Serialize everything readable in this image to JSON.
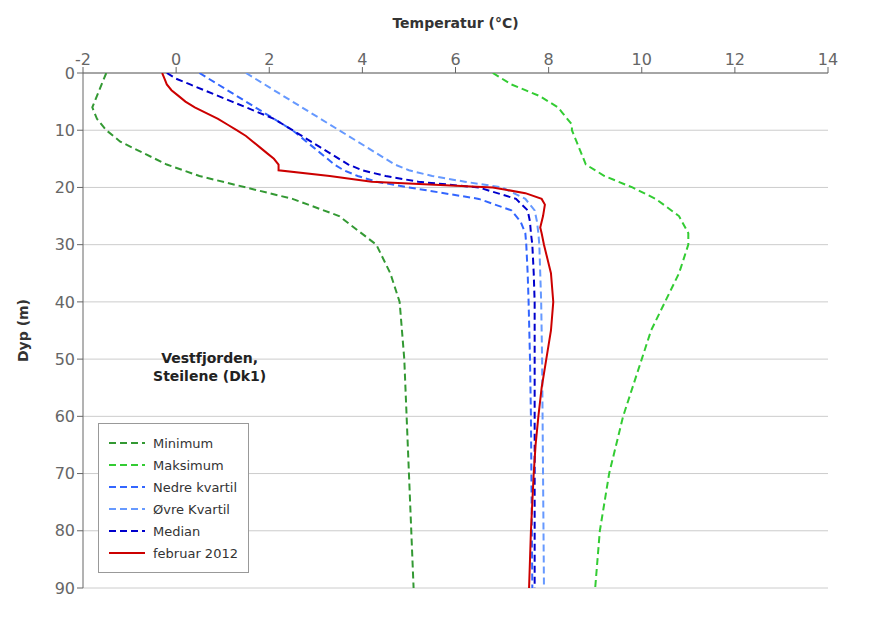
{
  "chart_data": {
    "type": "line",
    "xlabel": "Temperatur (°C)",
    "ylabel": "Dyp (m)",
    "xlim": [
      -2,
      14
    ],
    "ylim": [
      90,
      0
    ],
    "xticks": [
      -2,
      0,
      2,
      4,
      6,
      8,
      10,
      12,
      14
    ],
    "yticks": [
      0,
      10,
      20,
      30,
      40,
      50,
      60,
      70,
      80,
      90
    ],
    "grid": "y",
    "legend": "lower left",
    "annotations": [
      {
        "text": "Vestfjorden,\nSteilene (Dk1)"
      }
    ],
    "series": [
      {
        "name": "Minimum",
        "color": "#339933",
        "line_style": "dashed",
        "x": [
          -1.5,
          -1.6,
          -1.7,
          -1.8,
          -1.7,
          -1.5,
          -1.2,
          -0.7,
          -0.2,
          0.5,
          1.5,
          2.5,
          3.5,
          4.3,
          4.6,
          4.8,
          4.85,
          4.9,
          4.95,
          5.0,
          5.05,
          5.1
        ],
        "values": [
          0,
          2,
          4,
          6,
          8,
          10,
          12,
          14,
          16,
          18,
          20,
          22,
          25,
          30,
          35,
          40,
          45,
          50,
          60,
          70,
          80,
          90
        ]
      },
      {
        "name": "Maksimum",
        "color": "#33cc33",
        "line_style": "dashed",
        "x": [
          6.8,
          7.0,
          7.2,
          7.5,
          7.8,
          8.0,
          8.2,
          8.3,
          8.4,
          8.5,
          8.5,
          8.6,
          8.7,
          8.8,
          9.2,
          9.8,
          10.3,
          10.8,
          11.0,
          11.0,
          10.8,
          10.5,
          10.2,
          10.0,
          9.6,
          9.3,
          9.1,
          9.0
        ],
        "values": [
          0,
          1,
          2,
          3,
          4,
          5,
          6,
          7,
          8,
          9,
          10,
          12,
          14,
          16,
          18,
          20,
          22,
          25,
          28,
          30,
          35,
          40,
          45,
          50,
          60,
          70,
          80,
          90
        ]
      },
      {
        "name": "Nedre kvartil",
        "color": "#3366ff",
        "line_style": "dashed",
        "x": [
          0.5,
          0.7,
          0.9,
          1.1,
          1.3,
          1.5,
          1.7,
          1.9,
          2.1,
          2.3,
          2.5,
          2.65,
          2.8,
          2.95,
          3.1,
          3.25,
          3.4,
          3.6,
          3.9,
          4.3,
          5.0,
          6.5,
          7.2,
          7.4,
          7.5,
          7.52,
          7.55,
          7.57,
          7.6,
          7.62,
          7.63,
          7.64,
          7.65
        ],
        "values": [
          0,
          1,
          2,
          3,
          4,
          5,
          6,
          7,
          8,
          9,
          10,
          11,
          12,
          13,
          14,
          15,
          16,
          17,
          18,
          19,
          20,
          22,
          24,
          26,
          28,
          30,
          35,
          40,
          50,
          60,
          70,
          80,
          90
        ]
      },
      {
        "name": "Øvre Kvartil",
        "color": "#6699ff",
        "line_style": "dashed",
        "x": [
          1.5,
          1.7,
          1.9,
          2.1,
          2.3,
          2.5,
          2.7,
          2.9,
          3.1,
          3.3,
          3.5,
          3.7,
          3.9,
          4.1,
          4.3,
          4.5,
          4.7,
          5.0,
          5.5,
          6.2,
          7.0,
          7.5,
          7.7,
          7.75,
          7.78,
          7.8,
          7.82,
          7.84,
          7.86,
          7.87,
          7.88,
          7.89,
          7.9
        ],
        "values": [
          0,
          1,
          2,
          3,
          4,
          5,
          6,
          7,
          8,
          9,
          10,
          11,
          12,
          13,
          14,
          15,
          16,
          17,
          18,
          19,
          20,
          22,
          24,
          26,
          28,
          30,
          35,
          40,
          50,
          60,
          70,
          80,
          90
        ]
      },
      {
        "name": "Median",
        "color": "#0000cc",
        "line_style": "dashed",
        "x": [
          -0.2,
          0.0,
          0.3,
          0.6,
          0.9,
          1.2,
          1.5,
          1.8,
          2.1,
          2.3,
          2.5,
          2.7,
          2.9,
          3.1,
          3.3,
          3.5,
          3.7,
          4.0,
          4.5,
          5.2,
          6.5,
          7.3,
          7.55,
          7.6,
          7.62,
          7.65,
          7.68,
          7.7,
          7.7,
          7.7,
          7.7,
          7.7,
          7.7,
          7.7
        ],
        "values": [
          0,
          1,
          2,
          3,
          4,
          5,
          6,
          7,
          8,
          9,
          10,
          11,
          12,
          13,
          14,
          15,
          16,
          17,
          18,
          19,
          20,
          22,
          24,
          26,
          28,
          30,
          35,
          40,
          45,
          50,
          60,
          70,
          80,
          90
        ]
      },
      {
        "name": "februar 2012",
        "color": "#cc0000",
        "line_style": "solid",
        "x": [
          -0.3,
          -0.25,
          -0.2,
          -0.1,
          0.05,
          0.2,
          0.4,
          0.65,
          0.9,
          1.1,
          1.3,
          1.5,
          1.65,
          1.8,
          1.95,
          2.1,
          2.2,
          2.2,
          3.3,
          4.2,
          6.8,
          7.5,
          7.85,
          7.92,
          7.9,
          7.88,
          7.85,
          7.82,
          7.85,
          7.9,
          8.05,
          8.1,
          8.05,
          7.95,
          7.85,
          7.78,
          7.72,
          7.68,
          7.65,
          7.62,
          7.6,
          7.58
        ],
        "values": [
          0,
          1,
          2,
          3,
          4,
          5,
          6,
          7,
          8,
          9,
          10,
          11,
          12,
          13,
          14,
          15,
          16,
          17,
          18,
          19,
          20,
          21,
          22,
          23,
          24,
          25,
          26,
          27,
          28,
          30,
          35,
          40,
          45,
          50,
          55,
          60,
          65,
          70,
          75,
          80,
          85,
          90
        ]
      }
    ]
  }
}
